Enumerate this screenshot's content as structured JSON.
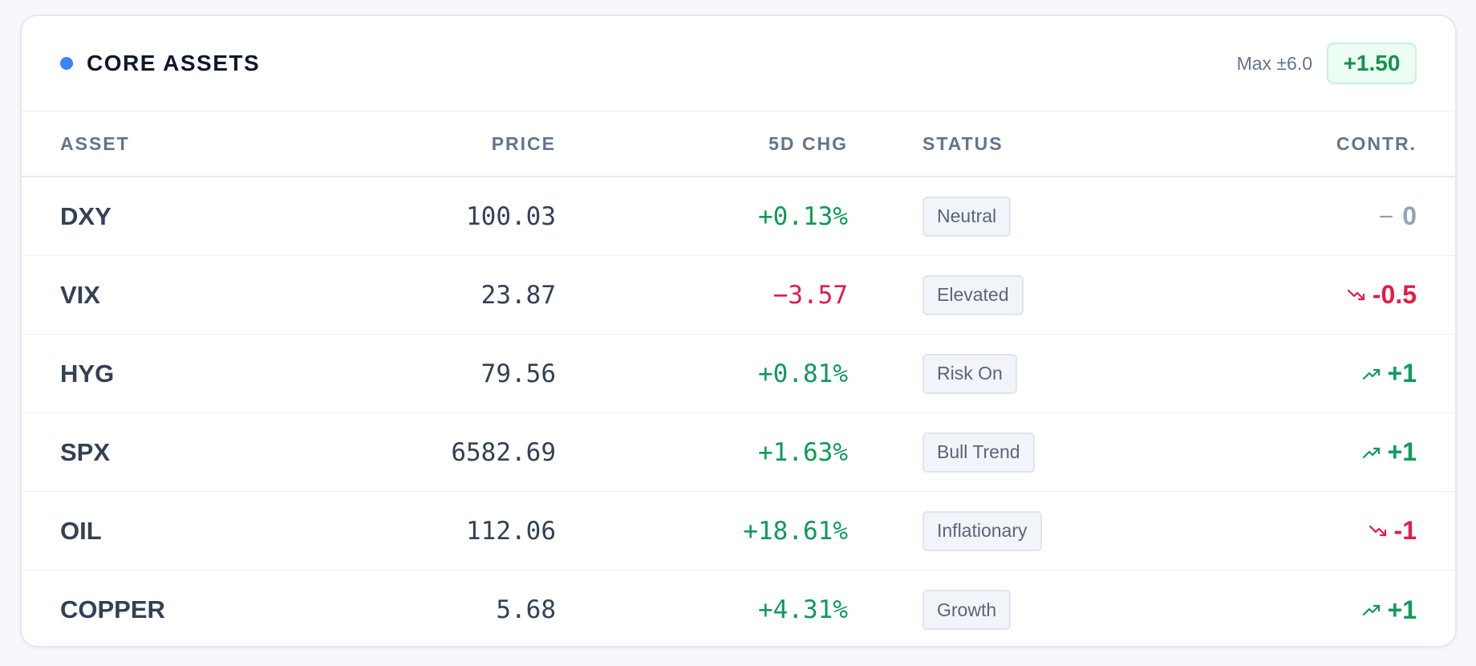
{
  "header": {
    "title": "CORE ASSETS",
    "max_label": "Max ±6.0",
    "score": "+1.50",
    "accent": "#3b82f6"
  },
  "columns": {
    "asset": "ASSET",
    "price": "PRICE",
    "chg": "5D CHG",
    "status": "STATUS",
    "contr": "CONTR."
  },
  "rows": [
    {
      "asset": "DXY",
      "price": "100.03",
      "chg": "+0.13%",
      "chg_dir": "pos",
      "status": "Neutral",
      "trend": "flat",
      "contr": "0"
    },
    {
      "asset": "VIX",
      "price": "23.87",
      "chg": "−3.57",
      "chg_dir": "neg",
      "status": "Elevated",
      "trend": "down",
      "contr": "-0.5"
    },
    {
      "asset": "HYG",
      "price": "79.56",
      "chg": "+0.81%",
      "chg_dir": "pos",
      "status": "Risk On",
      "trend": "up",
      "contr": "+1"
    },
    {
      "asset": "SPX",
      "price": "6582.69",
      "chg": "+1.63%",
      "chg_dir": "pos",
      "status": "Bull Trend",
      "trend": "up",
      "contr": "+1"
    },
    {
      "asset": "OIL",
      "price": "112.06",
      "chg": "+18.61%",
      "chg_dir": "pos",
      "status": "Inflationary",
      "trend": "down",
      "contr": "-1"
    },
    {
      "asset": "COPPER",
      "price": "5.68",
      "chg": "+4.31%",
      "chg_dir": "pos",
      "status": "Growth",
      "trend": "up",
      "contr": "+1"
    }
  ],
  "colors": {
    "positive": "#0e9a5a",
    "negative": "#e11d48",
    "neutral": "#94a3b8"
  }
}
